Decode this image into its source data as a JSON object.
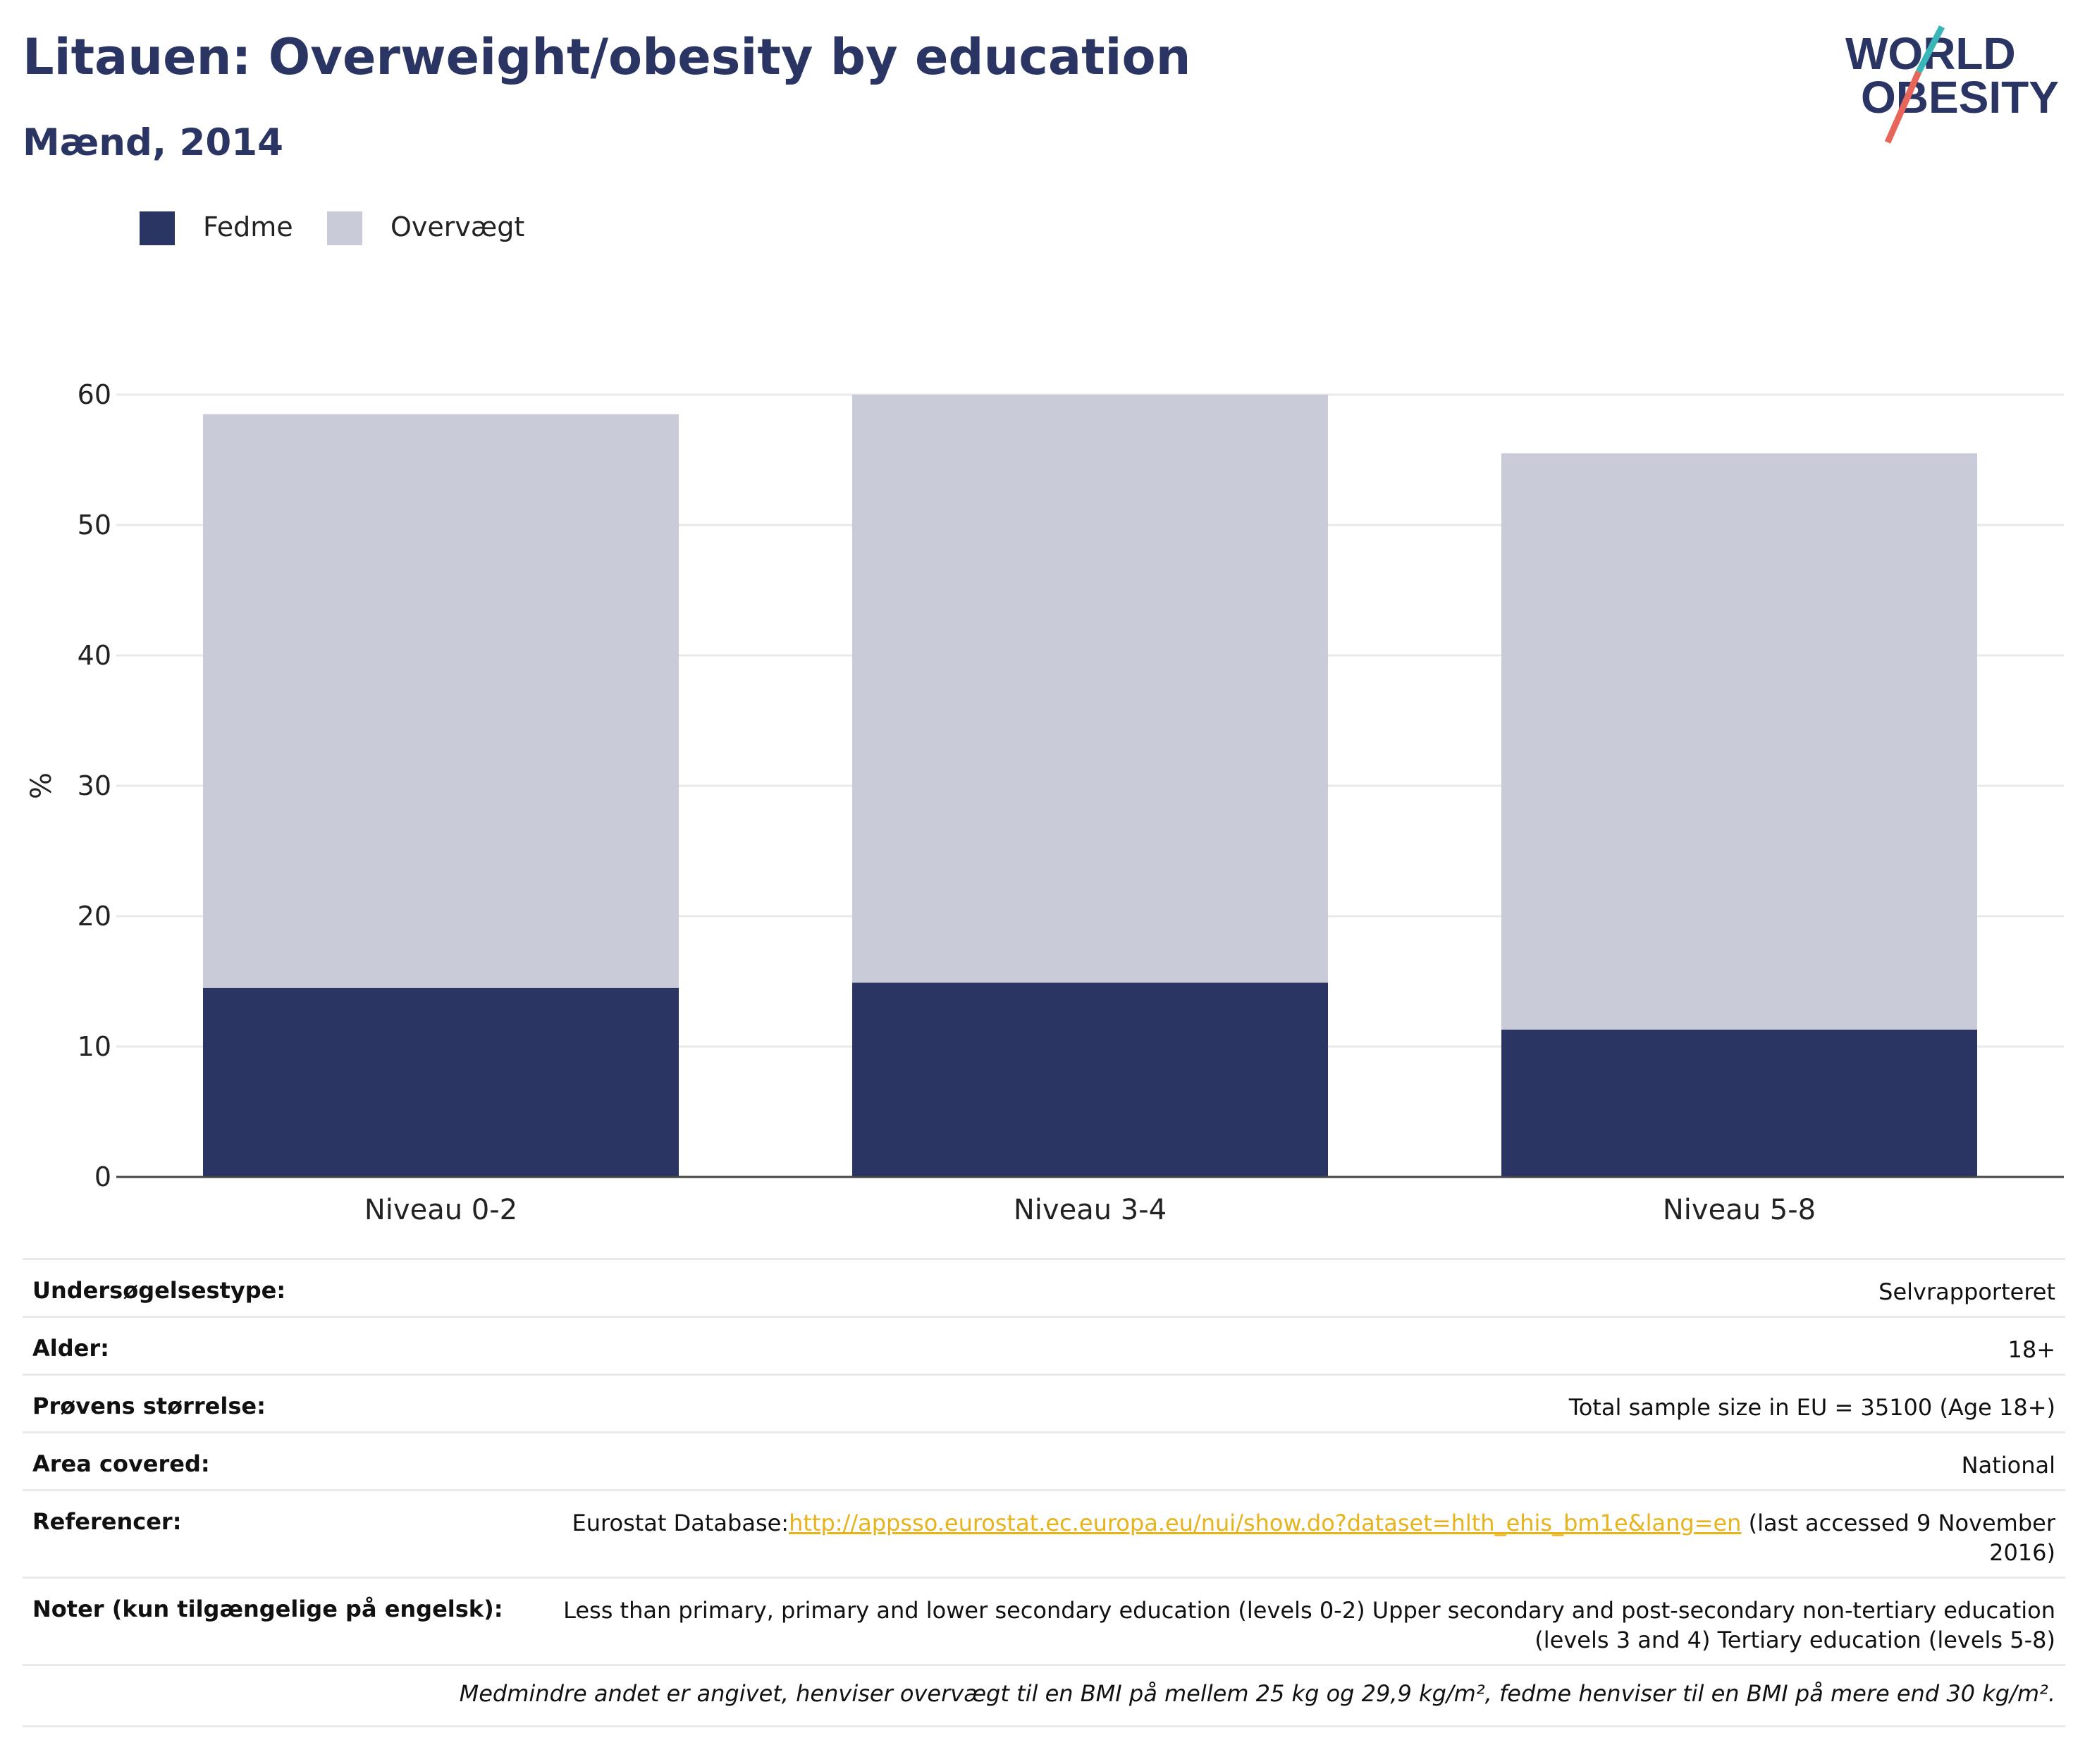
{
  "header": {
    "title": "Litauen: Overweight/obesity by education",
    "subtitle": "Mænd, 2014",
    "logo_text_line1": "WORLD",
    "logo_text_line2": "OBESITY"
  },
  "legend": {
    "items": [
      {
        "label": "Fedme",
        "color": "#2a3563"
      },
      {
        "label": "Overvægt",
        "color": "#c9ccd8"
      }
    ]
  },
  "chart_data": {
    "type": "bar",
    "stacked": true,
    "categories": [
      "Niveau 0-2",
      "Niveau 3-4",
      "Niveau 5-8"
    ],
    "series": [
      {
        "name": "Fedme",
        "color": "#2a3563",
        "values": [
          14.5,
          14.9,
          11.3
        ]
      },
      {
        "name": "Overvægt",
        "color": "#c9ccd8",
        "values": [
          44.0,
          45.1,
          44.2
        ]
      }
    ],
    "ylabel": "%",
    "ylim": [
      0,
      60
    ],
    "yticks": [
      0,
      10,
      20,
      30,
      40,
      50,
      60
    ],
    "grid": true,
    "legend_position": "top-left"
  },
  "info": {
    "survey_type": {
      "label": "Undersøgelsestype:",
      "value": "Selvrapporteret"
    },
    "age": {
      "label": "Alder:",
      "value": "18+"
    },
    "sample_size": {
      "label": "Prøvens størrelse:",
      "value": "Total sample size in EU = 35100 (Age 18+)"
    },
    "area": {
      "label": "Area covered:",
      "value": "National"
    },
    "references": {
      "label": "Referencer:",
      "prefix": "Eurostat Database:",
      "link": "http://appsso.eurostat.ec.europa.eu/nui/show.do?dataset=hlth_ehis_bm1e&lang=en",
      "suffix": " (last accessed 9 November 2016)"
    },
    "notes": {
      "label": "Noter (kun tilgængelige på engelsk):",
      "value": "Less than primary, primary and lower secondary education (levels 0-2) Upper secondary and post-secondary non-tertiary education (levels 3 and 4) Tertiary education (levels 5-8)"
    },
    "footnote": "Medmindre andet er angivet, henviser overvægt til en BMI på mellem 25 kg og 29,9 kg/m², fedme henviser til en BMI på mere end 30 kg/m²."
  }
}
